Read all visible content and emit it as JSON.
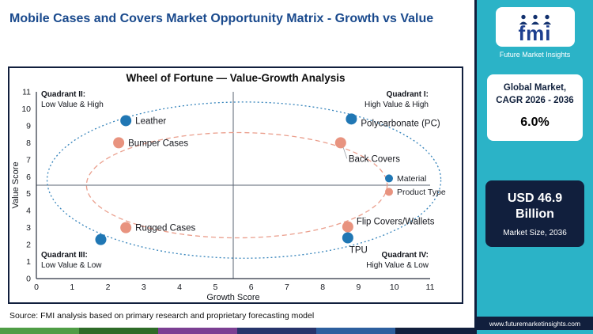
{
  "header": {
    "title": "Mobile Cases and Covers Market Opportunity Matrix - Growth vs Value"
  },
  "brand": {
    "logo_text": "fmi",
    "name": "Future Market Insights",
    "teal": "#2bb3c7",
    "navy": "#111f3d",
    "blue": "#1d3f8f"
  },
  "sidebar": {
    "cagr_card": {
      "line1": "Global Market,",
      "line2": "CAGR 2026 - 2036",
      "value": "6.0%"
    },
    "size_card": {
      "value": "USD 46.9 Billion",
      "label": "Market Size, 2036"
    },
    "website": "www.futuremarketinsights.com"
  },
  "footer": {
    "source": "Source: FMI analysis based on primary research and proprietary forecasting model",
    "strip_colors": [
      "#4f9d45",
      "#2e6b28",
      "#7b3f93",
      "#27346b",
      "#2d5f9e",
      "#111f3d"
    ]
  },
  "chart_data": {
    "type": "scatter",
    "title": "Wheel of Fortune — Value-Growth Analysis",
    "xlabel": "Growth Score",
    "ylabel": "Value Score",
    "xlim": [
      0,
      11
    ],
    "ylim": [
      0,
      11
    ],
    "x_ticks": [
      0,
      1,
      2,
      3,
      4,
      5,
      6,
      7,
      8,
      9,
      10,
      11
    ],
    "y_ticks": [
      0,
      1,
      2,
      3,
      4,
      5,
      6,
      7,
      8,
      9,
      10,
      11
    ],
    "grid": false,
    "legend_position": "right-middle",
    "quadrant_lines": {
      "x": 5.5,
      "y": 5.5
    },
    "quadrants": [
      {
        "title": "Quadrant II:",
        "subtitle": "Low Value & High",
        "position": "top-left"
      },
      {
        "title": "Quadrant I:",
        "subtitle": "High Value & High",
        "position": "top-right"
      },
      {
        "title": "Quadrant III:",
        "subtitle": "Low Value & Low",
        "position": "bottom-left"
      },
      {
        "title": "Quadrant IV:",
        "subtitle": "High Value & Low",
        "position": "bottom-right"
      }
    ],
    "series": [
      {
        "name": "Material",
        "color": "#2077b4",
        "dash": "2 3",
        "ellipse": {
          "cx": 5.8,
          "cy": 5.8,
          "rx": 5.5,
          "ry": 4.6
        },
        "points": [
          {
            "label": "Leather",
            "x": 2.5,
            "y": 9.3,
            "dx": 12,
            "dy": 4
          },
          {
            "label": "Polycarbonate (PC)",
            "x": 8.8,
            "y": 9.4,
            "dx": 12,
            "dy": 9
          },
          {
            "label": "",
            "x": 1.8,
            "y": 2.3
          },
          {
            "label": "TPU",
            "x": 8.7,
            "y": 2.4,
            "dx": 2,
            "dy": 19
          }
        ]
      },
      {
        "name": "Product Type",
        "color": "#e8937f",
        "dash": "6 4",
        "ellipse": {
          "cx": 5.6,
          "cy": 5.5,
          "rx": 4.2,
          "ry": 3.1
        },
        "points": [
          {
            "label": "Bumper Cases",
            "x": 2.3,
            "y": 8.0,
            "dx": 12,
            "dy": 4
          },
          {
            "label": "Back Covers",
            "x": 8.5,
            "y": 8.0,
            "dx": 10,
            "dy": 24,
            "leader": true
          },
          {
            "label": "Rugged Cases",
            "x": 2.5,
            "y": 3.0,
            "dx": 12,
            "dy": 4
          },
          {
            "label": "Flip Covers/Wallets",
            "x": 8.7,
            "y": 3.05,
            "dx": 11,
            "dy": -3
          }
        ]
      }
    ]
  }
}
